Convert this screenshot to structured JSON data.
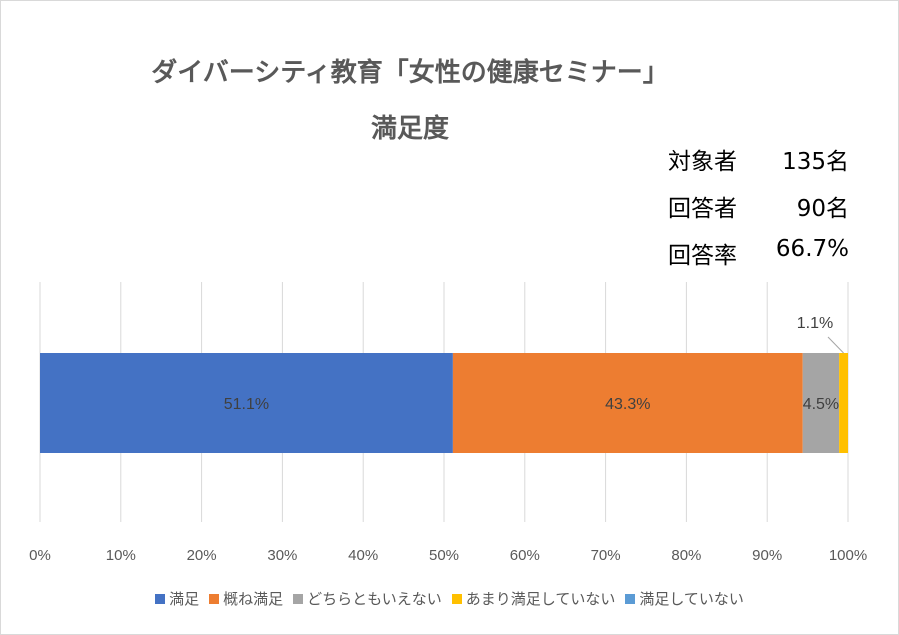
{
  "chart_data": {
    "type": "bar",
    "orientation": "horizontal",
    "stacked": true,
    "title": "ダイバーシティ教育「女性の健康セミナー」",
    "subtitle": "満足度",
    "xlim": [
      0,
      100
    ],
    "x_ticks": [
      "0%",
      "10%",
      "20%",
      "30%",
      "40%",
      "50%",
      "60%",
      "70%",
      "80%",
      "90%",
      "100%"
    ],
    "grid": true,
    "legend_position": "bottom",
    "series": [
      {
        "name": "満足",
        "value": 51.1,
        "label": "51.1%",
        "color": "#4472c4"
      },
      {
        "name": "概ね満足",
        "value": 43.3,
        "label": "43.3%",
        "color": "#ed7d31"
      },
      {
        "name": "どちらともいえない",
        "value": 4.5,
        "label": "4.5%",
        "color": "#a5a5a5"
      },
      {
        "name": "あまり満足していない",
        "value": 1.1,
        "label": "1.1%",
        "color": "#ffc000"
      },
      {
        "name": "満足していない",
        "value": 0,
        "label": "",
        "color": "#5b9bd5"
      }
    ]
  },
  "stats": [
    {
      "label": "対象者",
      "value": "135名"
    },
    {
      "label": "回答者",
      "value": "90名"
    },
    {
      "label": "回答率",
      "value": "66.7%"
    }
  ]
}
